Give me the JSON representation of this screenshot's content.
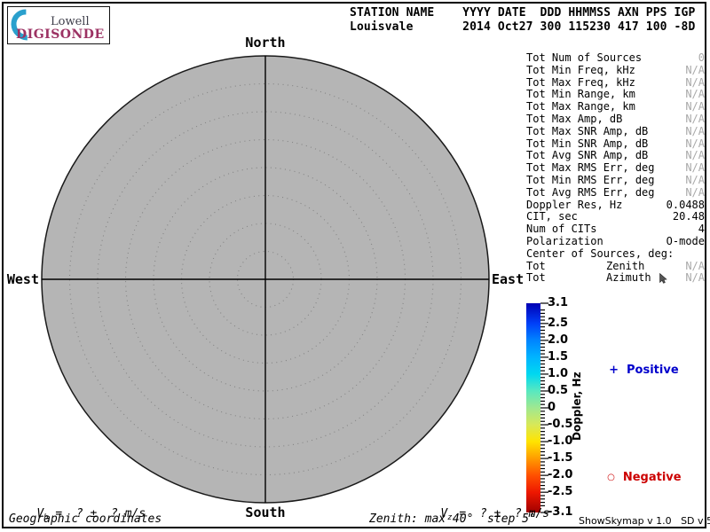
{
  "logo": {
    "name_top": "Lowell",
    "name_bottom": "DIGISONDE",
    "crescent_color": "#2aa0cd",
    "digisonde_color": "#9c3263"
  },
  "header": {
    "columns": "STATION NAME    YYYY DATE  DDD HHMMSS AXN PPS IGP",
    "values": "Louisvale       2014 Oct27 300 115230 417 100 -8D"
  },
  "skymap": {
    "labels": {
      "north": "North",
      "south": "South",
      "west": "West",
      "east": "East"
    },
    "fill": "#b5b5b5",
    "ring_color": "#848484",
    "outline_color": "#1a1a1a",
    "max_zenith_deg": 40,
    "step_deg": 5
  },
  "stats": {
    "rows": [
      {
        "label": "Tot Num of Sources",
        "value": "0",
        "muted": true
      },
      {
        "label": "Tot Min Freq, kHz",
        "value": "N/A",
        "muted": true
      },
      {
        "label": "Tot Max Freq, kHz",
        "value": "N/A",
        "muted": true
      },
      {
        "label": "Tot Min Range, km",
        "value": "N/A",
        "muted": true
      },
      {
        "label": "Tot Max Range, km",
        "value": "N/A",
        "muted": true
      },
      {
        "label": "Tot Max Amp, dB",
        "value": "N/A",
        "muted": true
      },
      {
        "label": "Tot Max SNR Amp, dB",
        "value": "N/A",
        "muted": true
      },
      {
        "label": "Tot Min SNR Amp, dB",
        "value": "N/A",
        "muted": true
      },
      {
        "label": "Tot Avg SNR Amp, dB",
        "value": "N/A",
        "muted": true
      },
      {
        "label": "Tot Max RMS Err, deg",
        "value": "N/A",
        "muted": true
      },
      {
        "label": "Tot Min RMS Err, deg",
        "value": "N/A",
        "muted": true
      },
      {
        "label": "Tot Avg RMS Err, deg",
        "value": "N/A",
        "muted": true
      },
      {
        "label": "Doppler Res, Hz",
        "value": "0.0488",
        "muted": false
      },
      {
        "label": "CIT, sec",
        "value": "20.48",
        "muted": false
      },
      {
        "label": "Num of CITs",
        "value": "4",
        "muted": false
      },
      {
        "label": "Polarization",
        "value": "O-mode",
        "muted": false
      },
      {
        "label": "Center of Sources, deg:",
        "value": "",
        "muted": false
      },
      {
        "label": "Tot",
        "mid": "Zenith",
        "value": "N/A",
        "muted": true
      },
      {
        "label": "Tot",
        "mid": "Azimuth",
        "value": "N/A",
        "muted": true,
        "cursor": true
      }
    ]
  },
  "colorbar": {
    "title": "Doppler, Hz",
    "ticks": [
      "3.1",
      "2.5",
      "2.0",
      "1.5",
      "1.0",
      "0.5",
      "0",
      "-0.5",
      "-1.0",
      "-1.5",
      "-2.0",
      "-2.5",
      "-3.1"
    ],
    "gradient": [
      "#0000b4",
      "#0040f8",
      "#0084ff",
      "#00b4ff",
      "#00d8f0",
      "#58e8c0",
      "#a0e890",
      "#d8e858",
      "#ffe400",
      "#ff9c00",
      "#ff5000",
      "#ee1800",
      "#a00000"
    ],
    "legend_positive": {
      "marker": "+",
      "label": "Positive",
      "color": "#0000cc"
    },
    "legend_negative": {
      "marker": "○",
      "label": "Negative",
      "color": "#cc0000"
    }
  },
  "footer": {
    "v_h": {
      "sym": "V",
      "sub": "h",
      "rest": " =  ? ±  ? m/s"
    },
    "v_z": {
      "sym": "V",
      "sub": "z",
      "rest": " =  ? ±  ? m/s"
    },
    "coordinates": "Geographic coordinates",
    "zenith_note": "Zenith: max 40°  step 5°",
    "version": "ShowSkymap v 1.0   SD v 5.1"
  }
}
